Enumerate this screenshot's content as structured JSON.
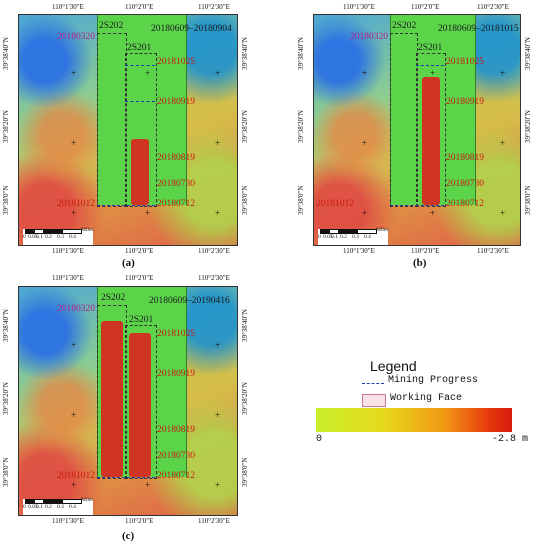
{
  "panels": {
    "a": {
      "caption": "(a)",
      "period": "20180609–20180904",
      "ticks_top": [
        "110°1'30\"E",
        "110°2'0\"E",
        "110°2'30\"E"
      ],
      "ticks_bottom": [
        "110°1'30\"E",
        "110°2'0\"E",
        "110°2'30\"E"
      ],
      "ticks_left": [
        "39°38'40\"N",
        "39°38'20\"N",
        "39°38'0\"N"
      ],
      "ticks_right": [
        "39°38'40\"N",
        "39°38'20\"N",
        "39°38'0\"N"
      ]
    },
    "b": {
      "caption": "(b)",
      "period": "20180609–20181015",
      "ticks_top": [
        "110°1'30\"E",
        "110°2'0\"E",
        "110°2'30\"E"
      ],
      "ticks_bottom": [
        "110°1'30\"E",
        "110°2'0\"E",
        "110°2'30\"E"
      ],
      "ticks_left": [
        "39°38'40\"N",
        "39°38'20\"N",
        "39°38'0\"N"
      ],
      "ticks_right": [
        "39°38'40\"N",
        "39°38'20\"N",
        "39°38'0\"N"
      ]
    },
    "c": {
      "caption": "(c)",
      "period": "20180609–20190416",
      "ticks_top": [
        "110°1'30\"E",
        "110°2'0\"E",
        "110°2'30\"E"
      ],
      "ticks_bottom": [
        "110°1'30\"E",
        "110°2'0\"E",
        "110°2'30\"E"
      ],
      "ticks_left": [
        "39°38'40\"N",
        "39°38'20\"N",
        "39°38'0\"N"
      ],
      "ticks_right": [
        "39°38'40\"N",
        "39°38'20\"N",
        "39°38'0\"N"
      ]
    }
  },
  "face_labels": {
    "2s202": "2S202",
    "2s201": "2S201"
  },
  "dates": {
    "top_left": "20180320",
    "bottom_left": "20181012",
    "progress": [
      "20181025",
      "20180919",
      "20180819",
      "20180730",
      "20180712"
    ]
  },
  "scale_bar": {
    "labels": [
      "0",
      "0.05",
      "0.1",
      "0.2",
      "0.3",
      "0.4"
    ],
    "unit": "Miles"
  },
  "legend": {
    "title": "Legend",
    "mining_progress": "Mining Progress",
    "working_face": "Working Face",
    "ramp_min": "0",
    "ramp_max": "-2.8 m",
    "colors": {
      "progress_line": "#1e3fb0",
      "working_face_fill": "#f7e0e6",
      "subsidence": "#d62c1f",
      "ramp_low": "#c9f02a",
      "ramp_high": "#d81a0c"
    }
  }
}
